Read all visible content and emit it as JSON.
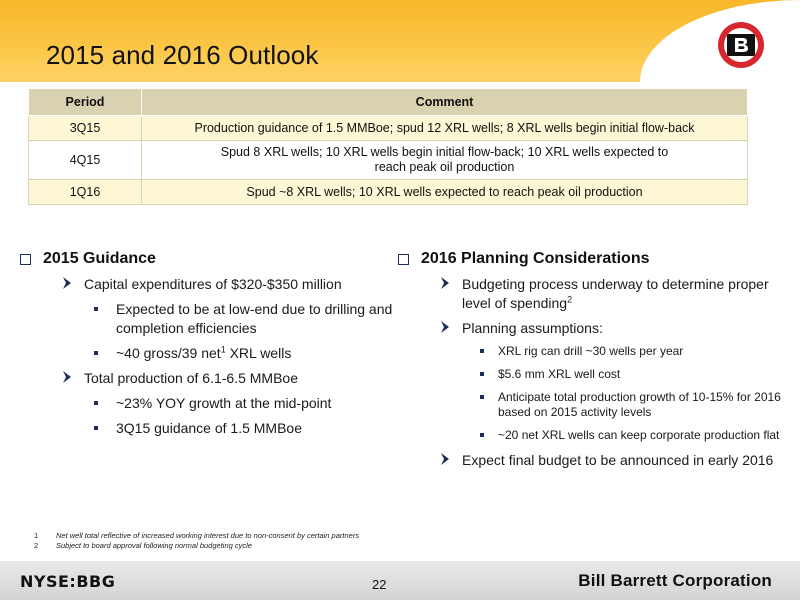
{
  "header": {
    "title": "2015 and 2016 Outlook",
    "logo_letter": "B",
    "brand_colors": {
      "band": "#f8b62a",
      "logo": "#d8262e",
      "bullet": "#1b2e5a"
    }
  },
  "table": {
    "columns": [
      "Period",
      "Comment"
    ],
    "rows": [
      {
        "period": "3Q15",
        "comment": "Production guidance of 1.5 MMBoe; spud 12 XRL wells; 8 XRL wells begin initial flow-back"
      },
      {
        "period": "4Q15",
        "comment_line1": "Spud 8 XRL wells; 10 XRL wells begin initial flow-back; 10 XRL wells expected to",
        "comment_line2": "reach peak oil production"
      },
      {
        "period": "1Q16",
        "comment": "Spud ~8 XRL wells; 10 XRL wells expected to reach peak oil production"
      }
    ]
  },
  "left": {
    "heading": "2015 Guidance",
    "capex": "Capital expenditures of $320-$350 million",
    "capex_sub1": "Expected to be at low-end due to drilling and completion efficiencies",
    "capex_sub2_pre": "~40 gross/39 net",
    "capex_sub2_sup": "1",
    "capex_sub2_post": " XRL wells",
    "production": "Total production of 6.1-6.5 MMBoe",
    "production_sub1": "~23% YOY growth at the mid-point",
    "production_sub2": "3Q15 guidance of 1.5 MMBoe"
  },
  "right": {
    "heading": "2016 Planning Considerations",
    "budget_text": "Budgeting process underway to determine proper level of spending",
    "budget_sup": "2",
    "assumptions": "Planning assumptions:",
    "assumption_items": [
      "XRL rig can drill ~30 wells per year",
      "$5.6 mm XRL well cost",
      "Anticipate total production growth of 10-15% for 2016 based on 2015 activity levels",
      "~20 net XRL wells can keep corporate production flat"
    ],
    "final_budget": "Expect final budget to be announced in early 2016"
  },
  "footnotes": [
    {
      "num": "1",
      "text": "Net well total reflective of increased working interest due to non-consent by certain partners"
    },
    {
      "num": "2",
      "text": "Subject to board approval following normal budgeting cycle"
    }
  ],
  "footer": {
    "ticker": "NYSE:BBG",
    "page": "22",
    "company": "Bill Barrett Corporation"
  }
}
